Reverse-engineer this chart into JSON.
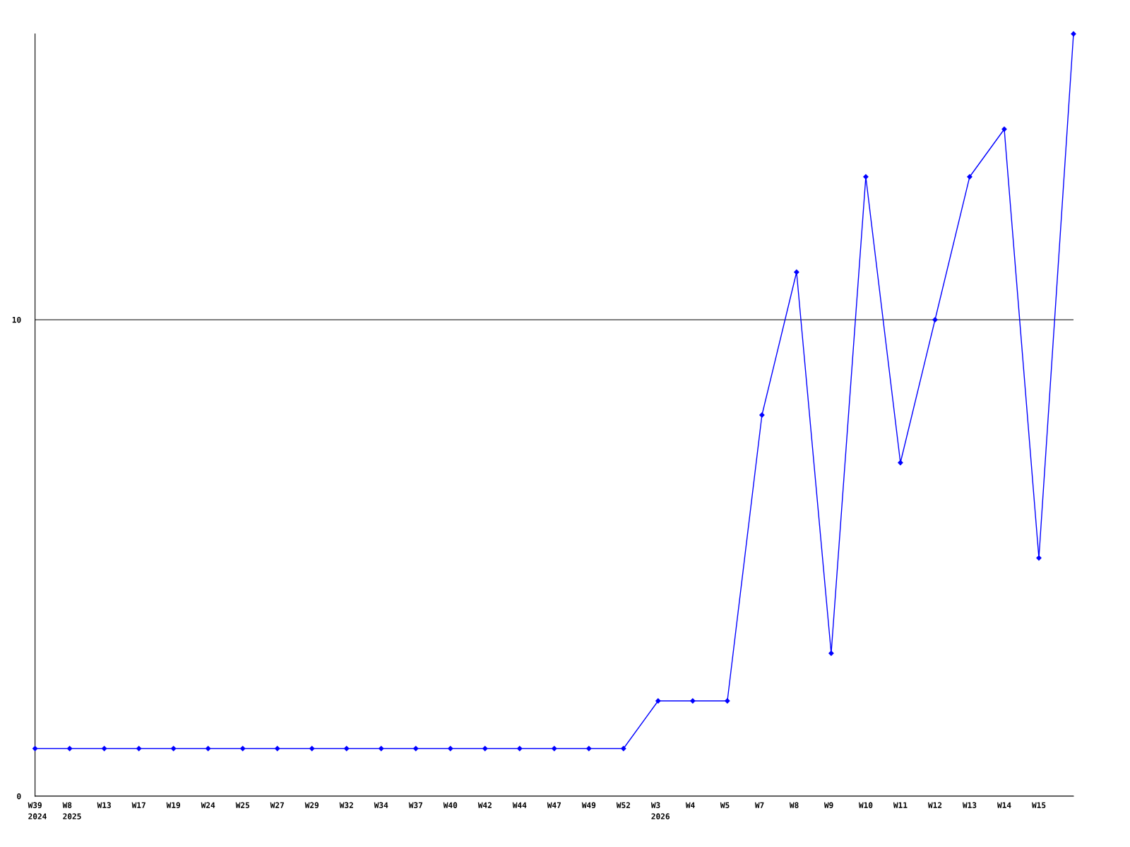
{
  "chart_data": {
    "type": "line",
    "categories": [
      "W39\n2024",
      "W8\n2025",
      "W13",
      "W17",
      "W19",
      "W24",
      "W25",
      "W27",
      "W29",
      "W32",
      "W34",
      "W37",
      "W40",
      "W42",
      "W44",
      "W47",
      "W49",
      "W52",
      "W3\n2026",
      "W4",
      "W5",
      "W7",
      "W8",
      "W9",
      "W10",
      "W11",
      "W12",
      "W13",
      "W14",
      "W15",
      null
    ],
    "series": [
      {
        "color": "#0000ff",
        "values": [
          1,
          1,
          1,
          1,
          1,
          1,
          1,
          1,
          1,
          1,
          1,
          1,
          1,
          1,
          1,
          1,
          1,
          1,
          2,
          2,
          2,
          8,
          11,
          3,
          13,
          7,
          10,
          13,
          14,
          5,
          16
        ]
      }
    ],
    "ylim": [
      0,
      16
    ],
    "yticks": [
      0,
      10
    ],
    "grid": "y",
    "marker": "diamond",
    "line_style": "solid"
  }
}
